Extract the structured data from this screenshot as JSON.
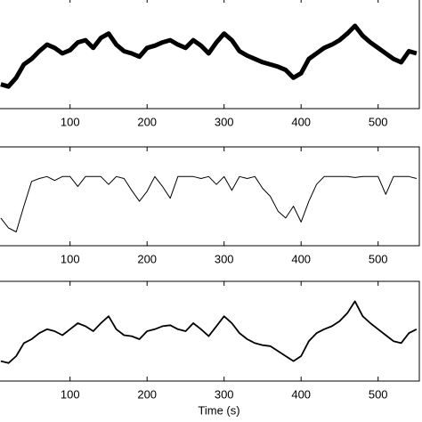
{
  "chart_data": [
    {
      "type": "line",
      "x": [
        10,
        20,
        30,
        40,
        50,
        60,
        70,
        80,
        90,
        100,
        110,
        120,
        130,
        140,
        150,
        160,
        170,
        180,
        190,
        200,
        210,
        220,
        230,
        240,
        250,
        260,
        270,
        280,
        290,
        300,
        310,
        320,
        330,
        340,
        350,
        360,
        370,
        380,
        390,
        400,
        410,
        420,
        430,
        440,
        450,
        460,
        470,
        480,
        490,
        500,
        510,
        520,
        530,
        540,
        550
      ],
      "values": [
        22,
        20,
        28,
        40,
        45,
        52,
        58,
        55,
        50,
        53,
        60,
        62,
        55,
        64,
        68,
        58,
        52,
        50,
        47,
        55,
        57,
        60,
        62,
        58,
        55,
        62,
        57,
        50,
        60,
        68,
        62,
        52,
        48,
        45,
        42,
        40,
        38,
        35,
        28,
        32,
        45,
        50,
        55,
        58,
        62,
        68,
        75,
        66,
        60,
        55,
        50,
        45,
        42,
        52,
        50
      ],
      "color": "#000000",
      "xlim": [
        9,
        557
      ],
      "ylim": [
        0,
        100
      ],
      "xticks": [
        100,
        200,
        300,
        400,
        500
      ]
    },
    {
      "type": "line",
      "x": [
        10,
        20,
        30,
        40,
        50,
        60,
        70,
        80,
        90,
        100,
        110,
        120,
        130,
        140,
        150,
        160,
        170,
        180,
        190,
        200,
        210,
        220,
        230,
        240,
        250,
        260,
        270,
        280,
        290,
        300,
        310,
        320,
        330,
        340,
        350,
        360,
        370,
        380,
        390,
        400,
        410,
        420,
        430,
        440,
        450,
        460,
        470,
        480,
        490,
        500,
        510,
        520,
        530,
        540,
        550
      ],
      "values": [
        28,
        18,
        14,
        40,
        65,
        68,
        70,
        66,
        70,
        70,
        60,
        70,
        70,
        70,
        62,
        70,
        68,
        56,
        45,
        55,
        70,
        60,
        48,
        70,
        70,
        70,
        68,
        70,
        62,
        70,
        56,
        70,
        68,
        70,
        58,
        50,
        35,
        28,
        40,
        24,
        45,
        62,
        70,
        70,
        70,
        70,
        69,
        70,
        70,
        70,
        52,
        70,
        70,
        70,
        68
      ],
      "color": "#000000",
      "xlim": [
        9,
        557
      ],
      "ylim": [
        0,
        100
      ],
      "xticks": [
        100,
        200,
        300,
        400,
        500
      ]
    },
    {
      "type": "line",
      "x": [
        10,
        20,
        30,
        40,
        50,
        60,
        70,
        80,
        90,
        100,
        110,
        120,
        130,
        140,
        150,
        160,
        170,
        180,
        190,
        200,
        210,
        220,
        230,
        240,
        250,
        260,
        270,
        280,
        290,
        300,
        310,
        320,
        330,
        340,
        350,
        360,
        370,
        380,
        390,
        400,
        410,
        420,
        430,
        440,
        450,
        460,
        470,
        480,
        490,
        500,
        510,
        520,
        530,
        540,
        550
      ],
      "values": [
        20,
        18,
        25,
        38,
        42,
        48,
        52,
        50,
        46,
        52,
        58,
        55,
        50,
        58,
        65,
        52,
        46,
        45,
        42,
        50,
        52,
        55,
        56,
        52,
        50,
        58,
        52,
        45,
        55,
        65,
        58,
        48,
        42,
        38,
        36,
        35,
        30,
        25,
        20,
        25,
        40,
        48,
        52,
        55,
        60,
        68,
        80,
        65,
        58,
        52,
        46,
        40,
        38,
        48,
        52
      ],
      "color": "#000000",
      "xlim": [
        9,
        557
      ],
      "ylim": [
        0,
        100
      ],
      "xticks": [
        100,
        200,
        300,
        400,
        500
      ],
      "x_label": "Time (s)"
    }
  ]
}
